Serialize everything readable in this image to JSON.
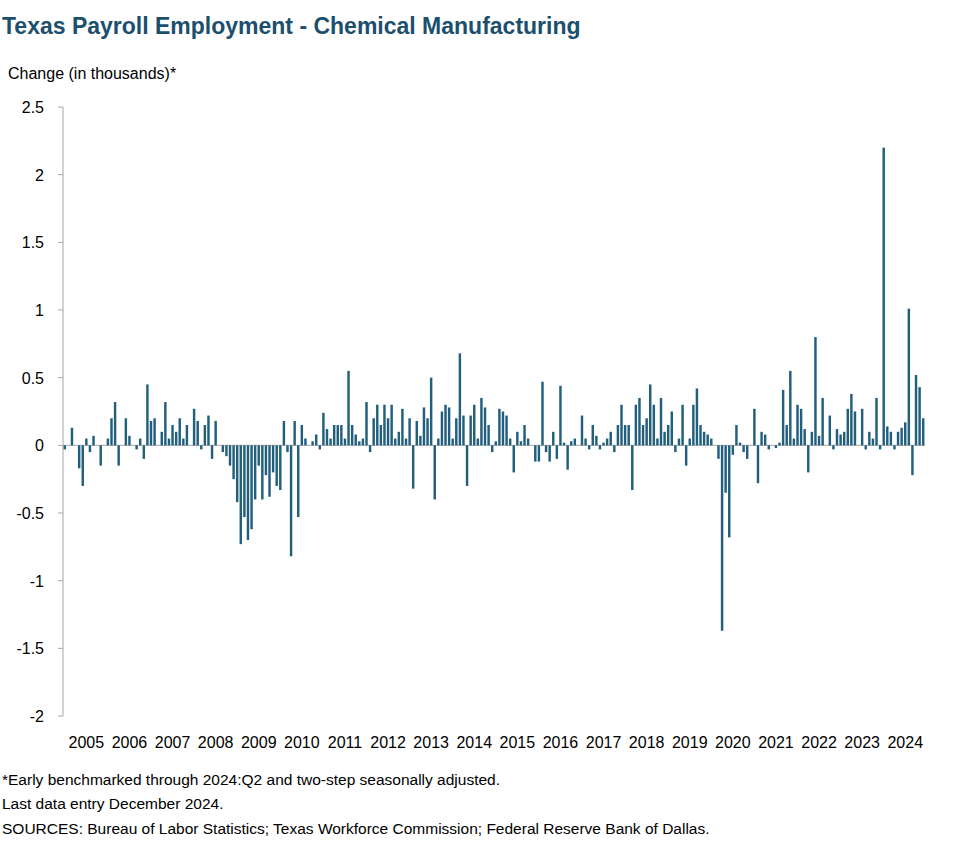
{
  "chart_data": {
    "type": "bar",
    "title": "Texas Payroll Employment - Chemical Manufacturing",
    "y_label": "Change (in thousands)*",
    "footnotes": [
      "*Early benchmarked through 2024:Q2 and two-step seasonally adjusted.",
      "Last data entry December 2024.",
      "SOURCES: Bureau of Labor Statistics; Texas Workforce Commission; Federal Reserve Bank of Dallas."
    ],
    "color": "#215f7d",
    "grid": false,
    "ylim": [
      -2,
      2.5
    ],
    "yticks": [
      -2,
      -1.5,
      -1,
      -0.5,
      0,
      0.5,
      1,
      1.5,
      2,
      2.5
    ],
    "categories": [
      null,
      null,
      null,
      null,
      null,
      null,
      "2005",
      null,
      null,
      null,
      null,
      null,
      null,
      null,
      null,
      null,
      null,
      null,
      "2006",
      null,
      null,
      null,
      null,
      null,
      null,
      null,
      null,
      null,
      null,
      null,
      "2007",
      null,
      null,
      null,
      null,
      null,
      null,
      null,
      null,
      null,
      null,
      null,
      "2008",
      null,
      null,
      null,
      null,
      null,
      null,
      null,
      null,
      null,
      null,
      null,
      "2009",
      null,
      null,
      null,
      null,
      null,
      null,
      null,
      null,
      null,
      null,
      null,
      "2010",
      null,
      null,
      null,
      null,
      null,
      null,
      null,
      null,
      null,
      null,
      null,
      "2011",
      null,
      null,
      null,
      null,
      null,
      null,
      null,
      null,
      null,
      null,
      null,
      "2012",
      null,
      null,
      null,
      null,
      null,
      null,
      null,
      null,
      null,
      null,
      null,
      "2013",
      null,
      null,
      null,
      null,
      null,
      null,
      null,
      null,
      null,
      null,
      null,
      "2014",
      null,
      null,
      null,
      null,
      null,
      null,
      null,
      null,
      null,
      null,
      null,
      "2015",
      null,
      null,
      null,
      null,
      null,
      null,
      null,
      null,
      null,
      null,
      null,
      "2016",
      null,
      null,
      null,
      null,
      null,
      null,
      null,
      null,
      null,
      null,
      null,
      "2017",
      null,
      null,
      null,
      null,
      null,
      null,
      null,
      null,
      null,
      null,
      null,
      "2018",
      null,
      null,
      null,
      null,
      null,
      null,
      null,
      null,
      null,
      null,
      null,
      "2019",
      null,
      null,
      null,
      null,
      null,
      null,
      null,
      null,
      null,
      null,
      null,
      "2020",
      null,
      null,
      null,
      null,
      null,
      null,
      null,
      null,
      null,
      null,
      null,
      "2021",
      null,
      null,
      null,
      null,
      null,
      null,
      null,
      null,
      null,
      null,
      null,
      "2022",
      null,
      null,
      null,
      null,
      null,
      null,
      null,
      null,
      null,
      null,
      null,
      "2023",
      null,
      null,
      null,
      null,
      null,
      null,
      null,
      null,
      null,
      null,
      null,
      "2024",
      null,
      null,
      null,
      null,
      null
    ],
    "values": [
      -0.03,
      0,
      0.13,
      0,
      -0.17,
      -0.3,
      0.05,
      -0.05,
      0.07,
      0,
      -0.15,
      0,
      0.05,
      0.2,
      0.32,
      -0.15,
      0,
      0.2,
      0.07,
      0,
      -0.03,
      0.05,
      -0.1,
      0.45,
      0.18,
      0.2,
      0,
      0.1,
      0.32,
      0.05,
      0.15,
      0.1,
      0.2,
      0.05,
      0.15,
      0,
      0.27,
      0.18,
      -0.03,
      0.15,
      0.22,
      -0.1,
      0.18,
      0,
      -0.05,
      -0.08,
      -0.15,
      -0.25,
      -0.42,
      -0.73,
      -0.53,
      -0.7,
      -0.62,
      -0.4,
      -0.15,
      -0.4,
      -0.22,
      -0.38,
      -0.2,
      -0.3,
      -0.33,
      0.18,
      -0.05,
      -0.82,
      0.18,
      -0.53,
      0.15,
      0.05,
      0,
      0.03,
      0.08,
      -0.03,
      0.24,
      0.12,
      0.05,
      0.15,
      0.15,
      0.15,
      0.05,
      0.55,
      0.15,
      0.08,
      0.03,
      0.05,
      0.32,
      -0.05,
      0.2,
      0.3,
      0.15,
      0.3,
      0.2,
      0.3,
      0.05,
      0.1,
      0.27,
      0.05,
      0.2,
      -0.32,
      0.18,
      0.07,
      0.28,
      0.2,
      0.5,
      -0.4,
      0.05,
      0.25,
      0.3,
      0.28,
      0.05,
      0.2,
      0.68,
      0.22,
      -0.3,
      0.22,
      0.3,
      0.05,
      0.35,
      0.28,
      0.15,
      -0.05,
      0.03,
      0.27,
      0.25,
      0.22,
      0.05,
      -0.2,
      0.1,
      0.03,
      0.15,
      0.05,
      0,
      -0.12,
      -0.12,
      0.47,
      -0.05,
      -0.12,
      0.1,
      -0.1,
      0.44,
      0.02,
      -0.18,
      0.03,
      0.05,
      0,
      0.22,
      0.05,
      -0.03,
      0.15,
      0.07,
      -0.03,
      0.02,
      0.05,
      0.1,
      -0.05,
      0.15,
      0.3,
      0.15,
      0.15,
      -0.33,
      0.3,
      0.35,
      0.15,
      0.2,
      0.45,
      0.3,
      0.05,
      0.35,
      0.1,
      0.15,
      0.25,
      -0.05,
      0.05,
      0.3,
      -0.15,
      0.05,
      0.3,
      0.42,
      0.15,
      0.1,
      0.08,
      0.05,
      0,
      -0.1,
      -1.37,
      -0.35,
      -0.68,
      -0.07,
      0.15,
      0.02,
      -0.05,
      -0.1,
      0,
      0.27,
      -0.28,
      0.1,
      0.08,
      -0.03,
      0,
      -0.02,
      0.02,
      0.41,
      0.15,
      0.55,
      0.05,
      0.3,
      0.27,
      0.12,
      -0.2,
      0.1,
      0.8,
      0.07,
      0.35,
      0,
      0.22,
      -0.03,
      0.12,
      0.08,
      0.1,
      0.27,
      0.38,
      0.25,
      0,
      0.27,
      -0.03,
      0.1,
      0.05,
      0.35,
      -0.03,
      2.2,
      0.14,
      0.1,
      -0.03,
      0.1,
      0.13,
      0.17,
      1.01,
      -0.22,
      0.52,
      0.43,
      0.2
    ]
  }
}
